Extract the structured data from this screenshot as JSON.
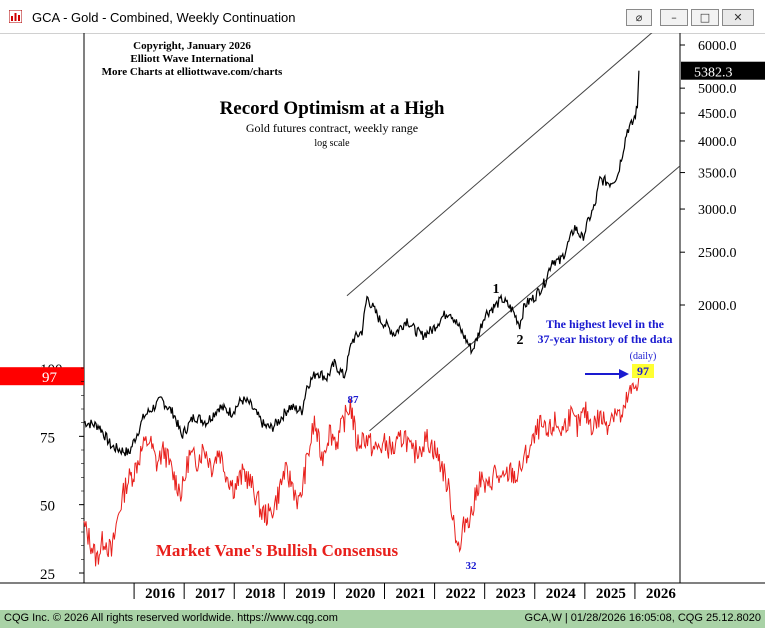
{
  "window": {
    "title": "GCA - Gold - Combined, Weekly Continuation",
    "buttons": [
      {
        "name": "link-icon-button",
        "glyph": "⌀"
      },
      {
        "name": "minimize-button",
        "glyph": "–"
      },
      {
        "name": "restore-button",
        "glyph": "□"
      },
      {
        "name": "close-button",
        "glyph": "✕"
      }
    ]
  },
  "status": {
    "left": "CQG Inc. © 2026 All rights reserved worldwide. https://www.cqg.com",
    "right": "GCA,W | 01/28/2026 16:05:08, CQG 25.12.8020"
  },
  "colors": {
    "price": "#000000",
    "sentiment": "#e8201c",
    "annotation_blue": "#1a1ad0",
    "badge_red": "#ff0000",
    "badge_yellow": "#ffff33",
    "status_green": "#a9d2a6"
  },
  "chart_data": {
    "type": "line",
    "title": "Record Optimism at a High",
    "subtitle": "Gold futures contract, weekly range",
    "scale_note": "log scale",
    "copyright": [
      "Copyright, January 2026",
      "Elliott Wave International",
      "More Charts at elliottwave.com/charts"
    ],
    "x_range": [
      2015.0,
      2026.9
    ],
    "x_ticks": [
      "2016",
      "2017",
      "2018",
      "2019",
      "2020",
      "2021",
      "2022",
      "2023",
      "2024",
      "2025",
      "2026"
    ],
    "price_axis": {
      "scale": "log",
      "ticks": [
        "6000.0",
        "5000.0",
        "4500.0",
        "4000.0",
        "3500.0",
        "3000.0",
        "2500.0",
        "2000.0"
      ],
      "tick_values": [
        6000,
        5000,
        4500,
        4000,
        3500,
        3000,
        2500,
        2000
      ],
      "last_value": "5382.3"
    },
    "sentiment_axis": {
      "ticks": [
        "100",
        "75",
        "50",
        "25"
      ],
      "tick_values": [
        100,
        75,
        50,
        25
      ],
      "last_value": "97"
    },
    "series": [
      {
        "name": "Gold futures contract, weekly range",
        "axis": "price",
        "x": [
          2015.0,
          2015.3,
          2015.55,
          2015.9,
          2016.2,
          2016.55,
          2016.8,
          2016.95,
          2017.2,
          2017.45,
          2017.7,
          2017.95,
          2018.15,
          2018.3,
          2018.6,
          2018.75,
          2018.9,
          2019.1,
          2019.35,
          2019.45,
          2019.65,
          2019.85,
          2020.0,
          2020.2,
          2020.35,
          2020.55,
          2020.65,
          2020.9,
          2021.0,
          2021.2,
          2021.45,
          2021.6,
          2021.75,
          2021.95,
          2022.15,
          2022.3,
          2022.55,
          2022.75,
          2022.85,
          2023.0,
          2023.2,
          2023.35,
          2023.55,
          2023.7,
          2023.8,
          2024.0,
          2024.2,
          2024.35,
          2024.5,
          2024.6,
          2024.8,
          2024.95,
          2025.1,
          2025.2,
          2025.3,
          2025.5,
          2025.65,
          2025.75,
          2025.85,
          2025.95,
          2026.05,
          2026.08
        ],
        "values": [
          1220,
          1200,
          1100,
          1070,
          1250,
          1340,
          1260,
          1150,
          1250,
          1220,
          1300,
          1270,
          1340,
          1320,
          1200,
          1190,
          1230,
          1300,
          1280,
          1420,
          1510,
          1470,
          1560,
          1480,
          1720,
          1790,
          2070,
          1880,
          1850,
          1770,
          1880,
          1800,
          1760,
          1800,
          1900,
          1950,
          1780,
          1650,
          1740,
          1920,
          1990,
          2050,
          1960,
          1840,
          2000,
          2070,
          2200,
          2420,
          2400,
          2500,
          2780,
          2650,
          2900,
          3040,
          3400,
          3350,
          3450,
          3800,
          4200,
          4300,
          4600,
          5382.3
        ]
      },
      {
        "name": "Market Vane's Bullish Consensus",
        "axis": "sentiment",
        "x": [
          2015.0,
          2015.1,
          2015.25,
          2015.4,
          2015.55,
          2015.7,
          2015.85,
          2016.0,
          2016.15,
          2016.3,
          2016.45,
          2016.6,
          2016.8,
          2016.95,
          2017.1,
          2017.25,
          2017.4,
          2017.55,
          2017.7,
          2017.85,
          2018.0,
          2018.2,
          2018.4,
          2018.55,
          2018.7,
          2018.85,
          2019.0,
          2019.15,
          2019.3,
          2019.45,
          2019.6,
          2019.75,
          2019.9,
          2020.05,
          2020.2,
          2020.32,
          2020.45,
          2020.6,
          2020.8,
          2021.0,
          2021.2,
          2021.4,
          2021.55,
          2021.7,
          2021.85,
          2022.0,
          2022.15,
          2022.3,
          2022.42,
          2022.5,
          2022.6,
          2022.75,
          2022.9,
          2023.05,
          2023.2,
          2023.35,
          2023.5,
          2023.65,
          2023.8,
          2023.95,
          2024.1,
          2024.25,
          2024.4,
          2024.55,
          2024.7,
          2024.85,
          2025.0,
          2025.15,
          2025.3,
          2025.45,
          2025.6,
          2025.75,
          2025.85,
          2026.0,
          2026.08
        ],
        "values": [
          42,
          38,
          30,
          38,
          32,
          48,
          58,
          62,
          70,
          74,
          65,
          70,
          60,
          54,
          68,
          66,
          71,
          64,
          70,
          61,
          56,
          62,
          55,
          47,
          46,
          52,
          62,
          58,
          50,
          66,
          80,
          67,
          77,
          73,
          81,
          87,
          72,
          75,
          70,
          72,
          70,
          76,
          68,
          71,
          74,
          70,
          64,
          54,
          40,
          32,
          44,
          47,
          60,
          55,
          62,
          58,
          62,
          60,
          67,
          72,
          79,
          75,
          80,
          77,
          83,
          78,
          84,
          79,
          82,
          80,
          85,
          81,
          89,
          93,
          97
        ]
      }
    ],
    "trend_channel": {
      "upper": [
        [
          2020.25,
          2080
        ],
        [
          2026.9,
          7000
        ]
      ],
      "lower": [
        [
          2020.7,
          1175
        ],
        [
          2026.9,
          3600
        ]
      ]
    },
    "annotations": {
      "wave_1": "1",
      "wave_2": "2",
      "peak_label": "87",
      "low_label": "32",
      "series_label": "Market Vane's Bullish Consensus",
      "note_line1": "The highest level in the",
      "note_line2": "37-year history of the data",
      "daily": "(daily)",
      "current_badge": "97"
    }
  }
}
